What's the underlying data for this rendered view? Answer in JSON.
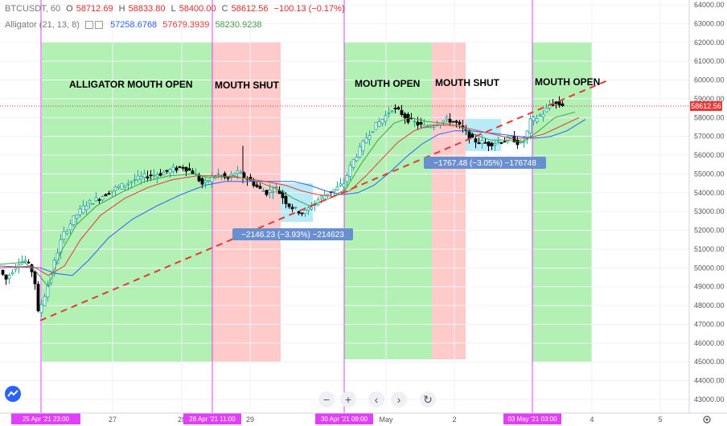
{
  "header": {
    "symbol": "BTCUSDT, 60",
    "open_label": "O",
    "open": "58712.69",
    "high_label": "H",
    "high": "58833.80",
    "low_label": "L",
    "low": "58400.00",
    "close_label": "C",
    "close": "58612.56",
    "change": "−100.13 (−0.17%)",
    "indicator": "Alligator (21, 13, 8)",
    "jaw": "57258.6768",
    "teeth": "57679.3939",
    "lips": "58230.9238"
  },
  "colors": {
    "up": "#26a69a",
    "down": "#000000",
    "jaw": "#2962ff",
    "teeth": "#e53935",
    "lips": "#43a047",
    "open_zone": "#b2f0b4",
    "shut_zone": "#ffcaca",
    "marker": "#e040fb",
    "price_line": "#e53935",
    "measure_box": "#a8e6f5",
    "callout": "#6a8fd0"
  },
  "chart_data": {
    "type": "candlestick",
    "instrument": "BTCUSDT",
    "timeframe": "60",
    "ylim": [
      43000,
      64000
    ],
    "y_ticks": [
      "43000.00",
      "44000.00",
      "45000.00",
      "46000.00",
      "47000.00",
      "48000.00",
      "49000.00",
      "50000.00",
      "51000.00",
      "52000.00",
      "53000.00",
      "54000.00",
      "55000.00",
      "56000.00",
      "57000.00",
      "58000.00",
      "59000.00",
      "60000.00",
      "61000.00",
      "62000.00",
      "63000.00",
      "64000.00"
    ],
    "x_ticks": [
      "27",
      "28",
      "29",
      "May",
      "2",
      "4",
      "5"
    ],
    "x_markers": [
      "25 Apr '21    23:00",
      "28 Apr '21    11:00",
      "30 Apr '21    09:00",
      "03 May '21    03:00"
    ],
    "current_price": "58612.56",
    "zones": [
      {
        "state": "open",
        "label": "ALLIGATOR MOUTH OPEN"
      },
      {
        "state": "shut",
        "label": "MOUTH SHUT"
      },
      {
        "state": "open",
        "label": "MOUTH OPEN"
      },
      {
        "state": "shut",
        "label": "MOUTH SHUT"
      },
      {
        "state": "open",
        "label": "MOUTH OPEN"
      }
    ],
    "measurements": [
      {
        "label": "−2146.23 (−3.93%) −214623",
        "from_price": 54600,
        "to_price": 52450
      },
      {
        "label": "−1767.48 (−3.05%) −176748",
        "from_price": 58000,
        "to_price": 56200
      }
    ],
    "trend_line": {
      "from_price": 47200,
      "to_price": 60000
    },
    "price_path": [
      [
        0,
        50000
      ],
      [
        10,
        49400
      ],
      [
        25,
        50300
      ],
      [
        35,
        50400
      ],
      [
        45,
        49600
      ],
      [
        50,
        47600
      ],
      [
        60,
        48800
      ],
      [
        70,
        50300
      ],
      [
        80,
        51700
      ],
      [
        95,
        52700
      ],
      [
        110,
        53400
      ],
      [
        125,
        53700
      ],
      [
        140,
        54100
      ],
      [
        155,
        54400
      ],
      [
        170,
        54700
      ],
      [
        185,
        54900
      ],
      [
        200,
        55000
      ],
      [
        215,
        55200
      ],
      [
        230,
        55400
      ],
      [
        245,
        55000
      ],
      [
        255,
        54400
      ],
      [
        265,
        54800
      ],
      [
        275,
        55000
      ],
      [
        285,
        54700
      ],
      [
        295,
        55100
      ],
      [
        305,
        54900
      ],
      [
        315,
        54600
      ],
      [
        325,
        54200
      ],
      [
        335,
        54000
      ],
      [
        345,
        54300
      ],
      [
        352,
        53900
      ],
      [
        360,
        53400
      ],
      [
        370,
        53100
      ],
      [
        380,
        52900
      ],
      [
        390,
        53300
      ],
      [
        400,
        53700
      ],
      [
        410,
        54000
      ],
      [
        420,
        54200
      ],
      [
        430,
        54500
      ],
      [
        440,
        55600
      ],
      [
        450,
        56300
      ],
      [
        460,
        57100
      ],
      [
        470,
        57600
      ],
      [
        480,
        58000
      ],
      [
        490,
        58500
      ],
      [
        500,
        58300
      ],
      [
        510,
        57900
      ],
      [
        520,
        57700
      ],
      [
        530,
        57500
      ],
      [
        540,
        57600
      ],
      [
        550,
        57800
      ],
      [
        560,
        57900
      ],
      [
        570,
        57700
      ],
      [
        580,
        57300
      ],
      [
        590,
        56800
      ],
      [
        600,
        56700
      ],
      [
        610,
        56600
      ],
      [
        620,
        56700
      ],
      [
        630,
        56800
      ],
      [
        640,
        56900
      ],
      [
        648,
        56600
      ],
      [
        655,
        56800
      ],
      [
        662,
        57800
      ],
      [
        670,
        58000
      ],
      [
        680,
        58300
      ],
      [
        688,
        58800
      ],
      [
        698,
        58700
      ]
    ],
    "lips_path": [
      [
        0,
        50200
      ],
      [
        30,
        50300
      ],
      [
        45,
        49800
      ],
      [
        60,
        49000
      ],
      [
        75,
        50800
      ],
      [
        95,
        52300
      ],
      [
        120,
        53300
      ],
      [
        150,
        54000
      ],
      [
        180,
        54600
      ],
      [
        210,
        54900
      ],
      [
        240,
        55000
      ],
      [
        260,
        54800
      ],
      [
        290,
        54900
      ],
      [
        320,
        54600
      ],
      [
        345,
        54200
      ],
      [
        365,
        53700
      ],
      [
        385,
        53300
      ],
      [
        410,
        53700
      ],
      [
        430,
        54200
      ],
      [
        450,
        55600
      ],
      [
        470,
        56800
      ],
      [
        490,
        57700
      ],
      [
        510,
        58000
      ],
      [
        530,
        57800
      ],
      [
        550,
        57700
      ],
      [
        570,
        57600
      ],
      [
        590,
        57100
      ],
      [
        610,
        56800
      ],
      [
        630,
        56800
      ],
      [
        650,
        56700
      ],
      [
        670,
        57300
      ],
      [
        690,
        58000
      ],
      [
        715,
        58300
      ]
    ],
    "teeth_path": [
      [
        0,
        50000
      ],
      [
        40,
        50100
      ],
      [
        60,
        49600
      ],
      [
        80,
        50100
      ],
      [
        100,
        51500
      ],
      [
        125,
        52800
      ],
      [
        155,
        53700
      ],
      [
        185,
        54300
      ],
      [
        215,
        54700
      ],
      [
        245,
        54900
      ],
      [
        270,
        54900
      ],
      [
        300,
        54800
      ],
      [
        330,
        54600
      ],
      [
        355,
        54400
      ],
      [
        375,
        54100
      ],
      [
        395,
        53900
      ],
      [
        415,
        53800
      ],
      [
        435,
        54100
      ],
      [
        455,
        54900
      ],
      [
        475,
        55800
      ],
      [
        495,
        56700
      ],
      [
        515,
        57300
      ],
      [
        535,
        57600
      ],
      [
        555,
        57600
      ],
      [
        575,
        57500
      ],
      [
        595,
        57300
      ],
      [
        615,
        57100
      ],
      [
        635,
        56900
      ],
      [
        655,
        56900
      ],
      [
        675,
        57100
      ],
      [
        695,
        57500
      ],
      [
        720,
        58000
      ]
    ],
    "jaw_path": [
      [
        0,
        50100
      ],
      [
        50,
        50000
      ],
      [
        70,
        49700
      ],
      [
        90,
        49600
      ],
      [
        110,
        50400
      ],
      [
        135,
        51600
      ],
      [
        165,
        52600
      ],
      [
        195,
        53300
      ],
      [
        225,
        53900
      ],
      [
        255,
        54400
      ],
      [
        280,
        54600
      ],
      [
        310,
        54600
      ],
      [
        340,
        54600
      ],
      [
        365,
        54600
      ],
      [
        385,
        54400
      ],
      [
        405,
        54100
      ],
      [
        425,
        53900
      ],
      [
        445,
        54000
      ],
      [
        465,
        54400
      ],
      [
        485,
        55100
      ],
      [
        505,
        55900
      ],
      [
        525,
        56600
      ],
      [
        545,
        57100
      ],
      [
        565,
        57300
      ],
      [
        585,
        57300
      ],
      [
        605,
        57200
      ],
      [
        625,
        57100
      ],
      [
        645,
        57000
      ],
      [
        665,
        56900
      ],
      [
        685,
        57000
      ],
      [
        705,
        57300
      ],
      [
        728,
        57900
      ]
    ]
  }
}
